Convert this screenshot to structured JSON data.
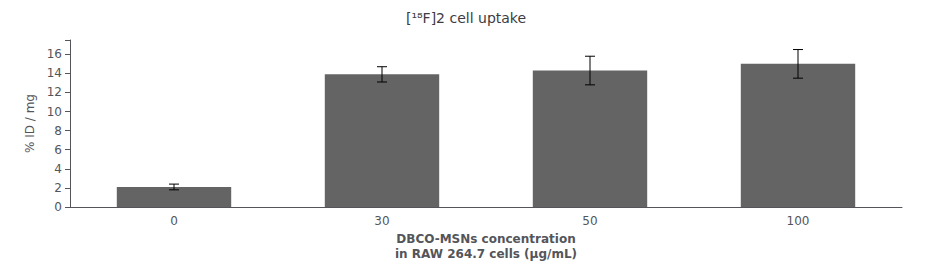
{
  "chart_data": {
    "type": "bar",
    "title": "[¹⁸F]2 cell uptake",
    "xlabel": "DBCO-MSNs concentration\nin RAW 264.7 cells (μg/mL)",
    "ylabel": "% ID / mg",
    "categories": [
      "0",
      "30",
      "50",
      "100"
    ],
    "values": [
      2.1,
      13.9,
      14.3,
      15.0
    ],
    "errors": [
      0.3,
      0.8,
      1.5,
      1.5
    ],
    "color": "#646464",
    "ylim": [
      0,
      17.5
    ],
    "yticks": [
      0,
      2,
      4,
      6,
      8,
      10,
      12,
      14,
      16
    ],
    "grid": false
  }
}
